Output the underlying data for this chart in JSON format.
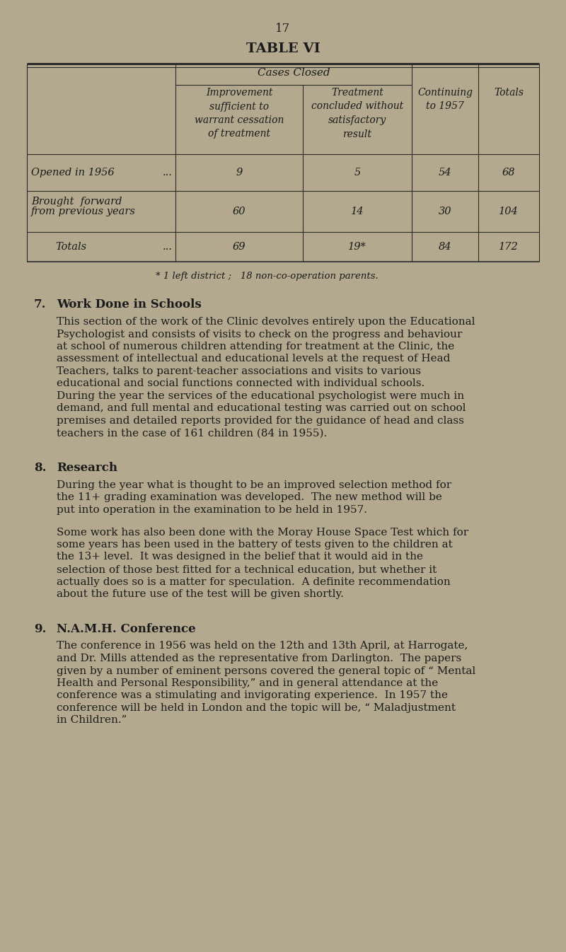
{
  "bg_color": "#b3a98e",
  "text_color": "#1a1a1a",
  "page_number": "17",
  "table_title": "TABLE VI",
  "table": {
    "col_headers_span": "Cases Closed",
    "col1_header": "Improvement\nsufficient to\nwarrant cessation\nof treatment",
    "col2_header": "Treatment\nconcluded without\nsatisfactory\nresult",
    "col3_header": "Continuing\nto 1957",
    "col4_header": "Totals",
    "rows": [
      {
        "label": "Opened in 1956",
        "label_suffix": "...",
        "v1": "9",
        "v2": "5",
        "v3": "54",
        "v4": "68"
      },
      {
        "label1": "Brought  forward",
        "label2": "from previous years",
        "label_suffix": "",
        "v1": "60",
        "v2": "14",
        "v3": "30",
        "v4": "104"
      },
      {
        "label": "Totals",
        "label_suffix": "...",
        "v1": "69",
        "v2": "19*",
        "v3": "84",
        "v4": "172"
      }
    ]
  },
  "footnote": "* 1 left district ;   18 non-co-operation parents.",
  "sections": [
    {
      "number": "7.",
      "heading": "Work Done in Schools",
      "paragraphs": [
        [
          "This section of the work of the Clinic devolves entirely upon the Educational",
          "Psychologist and consists of visits to check on the progress and behaviour",
          "at school of numerous children attending for treatment at the Clinic, the",
          "assessment of intellectual and educational levels at the request of Head",
          "Teachers, talks to parent-teacher associations and visits to various",
          "educational and social functions connected with individual schools.",
          "During the year the services of the educational psychologist were much in",
          "demand, and full mental and educational testing was carried out on school",
          "premises and detailed reports provided for the guidance of head and class",
          "teachers in the case of 161 children (84 in 1955)."
        ]
      ]
    },
    {
      "number": "8.",
      "heading": "Research",
      "paragraphs": [
        [
          "During the year what is thought to be an improved selection method for",
          "the 11+ grading examination was developed.  The new method will be",
          "put into operation in the examination to be held in 1957."
        ],
        [
          "Some work has also been done with the Moray House Space Test which for",
          "some years has been used in the battery of tests given to the children at",
          "the 13+ level.  It was designed in the belief that it would aid in the",
          "selection of those best fitted for a technical education, but whether it",
          "actually does so is a matter for speculation.  A definite recommendation",
          "about the future use of the test will be given shortly."
        ]
      ]
    },
    {
      "number": "9.",
      "heading": "N.A.M.H. Conference",
      "paragraphs": [
        [
          "The conference in 1956 was held on the 12th and 13th April, at Harrogate,",
          "and Dr. Mills attended as the representative from Darlington.  The papers",
          "given by a number of eminent persons covered the general topic of “ Mental",
          "Health and Personal Responsibility,” and in general attendance at the",
          "conference was a stimulating and invigorating experience.  In 1957 the",
          "conference will be held in London and the topic will be, “ Maladjustment",
          "in Children.”"
        ]
      ]
    }
  ]
}
